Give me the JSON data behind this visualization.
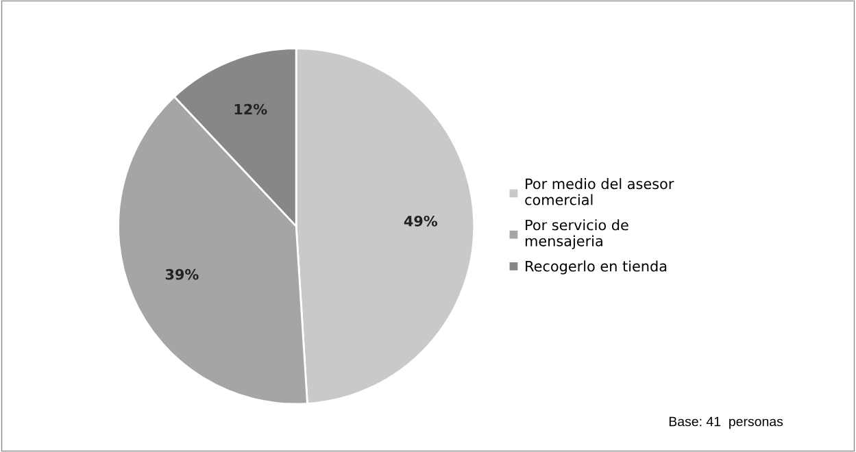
{
  "chart_data": {
    "type": "pie",
    "categories": [
      "Por medio del asesor comercial",
      "Por servicio de mensajeria",
      "Recogerlo en tienda"
    ],
    "values": [
      49,
      39,
      12
    ],
    "colors": [
      "#c9c9c9",
      "#a5a5a5",
      "#878787"
    ],
    "value_labels": [
      "49%",
      "39%",
      "12%"
    ],
    "legend": "right",
    "annotations": [
      "Base: 41  personas"
    ]
  }
}
